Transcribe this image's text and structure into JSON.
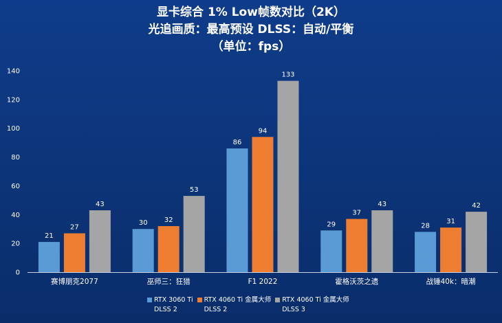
{
  "chart_data": {
    "type": "bar",
    "title_lines": [
      "显卡综合 1% Low帧数对比（2K）",
      "光追画质：最高预设     DLSS：自动/平衡",
      "（单位：fps）"
    ],
    "categories": [
      "赛博朋克2077",
      "巫师三：狂猎",
      "F1 2022",
      "霍格沃茨之遗",
      "战锤40k：暗潮"
    ],
    "series": [
      {
        "name": "RTX 3060 Ti\nDLSS 2",
        "color": "#5b9bd5",
        "values": [
          21,
          30,
          86,
          29,
          28
        ]
      },
      {
        "name": "RTX 4060 Ti 金属大师\nDLSS 2",
        "color": "#ed7d31",
        "values": [
          27,
          32,
          94,
          37,
          31
        ]
      },
      {
        "name": "RTX 4060 Ti 金属大师\nDLSS 3",
        "color": "#a5a5a5",
        "values": [
          43,
          53,
          133,
          43,
          42
        ]
      }
    ],
    "ylim": [
      0,
      140
    ],
    "yticks": [
      "0",
      "20",
      "40",
      "60",
      "80",
      "100",
      "120",
      "140"
    ],
    "grid": false,
    "legend_position": "bottom"
  }
}
